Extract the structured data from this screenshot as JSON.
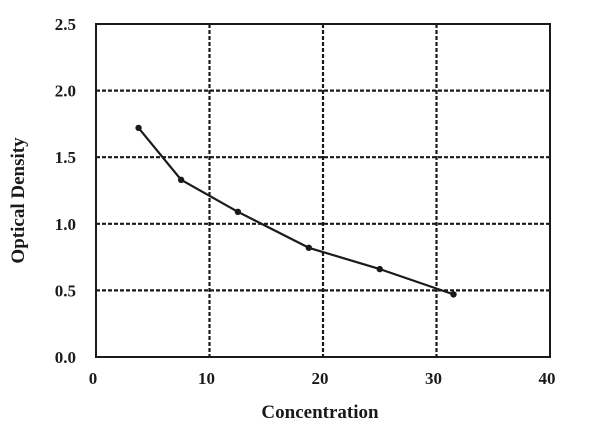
{
  "chart_data": {
    "type": "line",
    "xlabel": "Concentration",
    "ylabel": "Optical Density",
    "xlim": [
      0,
      40
    ],
    "ylim": [
      0,
      2.5
    ],
    "xticks": [
      "0",
      "10",
      "20",
      "30",
      "40"
    ],
    "yticks": [
      "0.0",
      "0.5",
      "1.0",
      "1.5",
      "2.0",
      "2.5"
    ],
    "grid": "dashed",
    "legend": "none",
    "series": [
      {
        "x": [
          3.75,
          7.5,
          12.5,
          18.75,
          25,
          31.5
        ],
        "y": [
          1.72,
          1.33,
          1.09,
          0.82,
          0.66,
          0.47
        ]
      }
    ],
    "colors": {
      "line": "#1a1a1a",
      "grid": "#1a1a1a",
      "frame": "#1a1a1a"
    }
  }
}
